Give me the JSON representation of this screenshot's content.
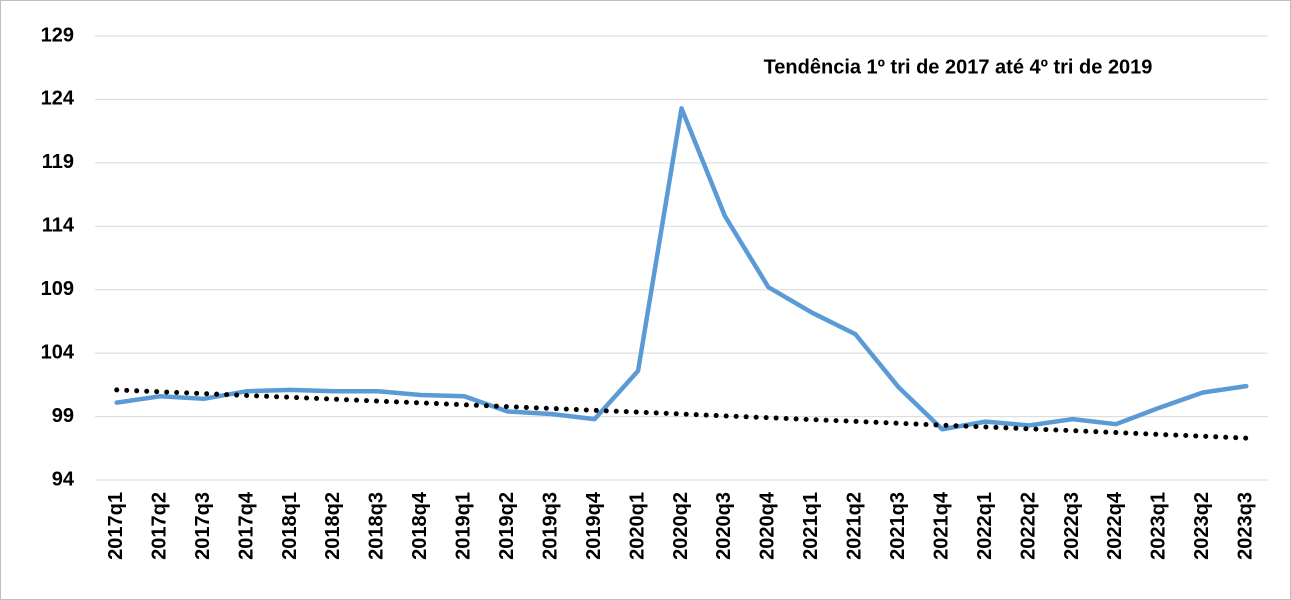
{
  "chart_data": {
    "type": "line",
    "annotation": "Tendência 1º tri de 2017 até 4º tri de 2019",
    "categories": [
      "2017q1",
      "2017q2",
      "2017q3",
      "2017q4",
      "2018q1",
      "2018q2",
      "2018q3",
      "2018q4",
      "2019q1",
      "2019q2",
      "2019q3",
      "2019q4",
      "2020q1",
      "2020q2",
      "2020q3",
      "2020q4",
      "2021q1",
      "2021q2",
      "2021q3",
      "2021q4",
      "2022q1",
      "2022q2",
      "2022q3",
      "2022q4",
      "2023q1",
      "2023q2",
      "2023q3"
    ],
    "series": [
      {
        "color": "#5b9bd5",
        "style": "solid",
        "values": [
          100.1,
          100.6,
          100.4,
          101.0,
          101.1,
          101.0,
          101.0,
          100.7,
          100.6,
          99.4,
          99.2,
          98.8,
          102.6,
          123.3,
          114.8,
          109.2,
          107.2,
          105.5,
          101.3,
          98.0,
          98.6,
          98.3,
          98.8,
          98.4,
          99.7,
          100.9,
          101.4
        ]
      },
      {
        "color": "#000000",
        "style": "dotted",
        "values": [
          101.1,
          100.95,
          100.81,
          100.66,
          100.52,
          100.37,
          100.22,
          100.08,
          99.93,
          99.78,
          99.64,
          99.49,
          99.35,
          99.2,
          99.05,
          98.91,
          98.76,
          98.62,
          98.47,
          98.32,
          98.18,
          98.03,
          97.89,
          97.74,
          97.59,
          97.45,
          97.3
        ]
      }
    ],
    "ylim": [
      94,
      129
    ],
    "yticks": [
      94,
      99,
      104,
      109,
      114,
      119,
      124,
      129
    ],
    "grid": true
  }
}
